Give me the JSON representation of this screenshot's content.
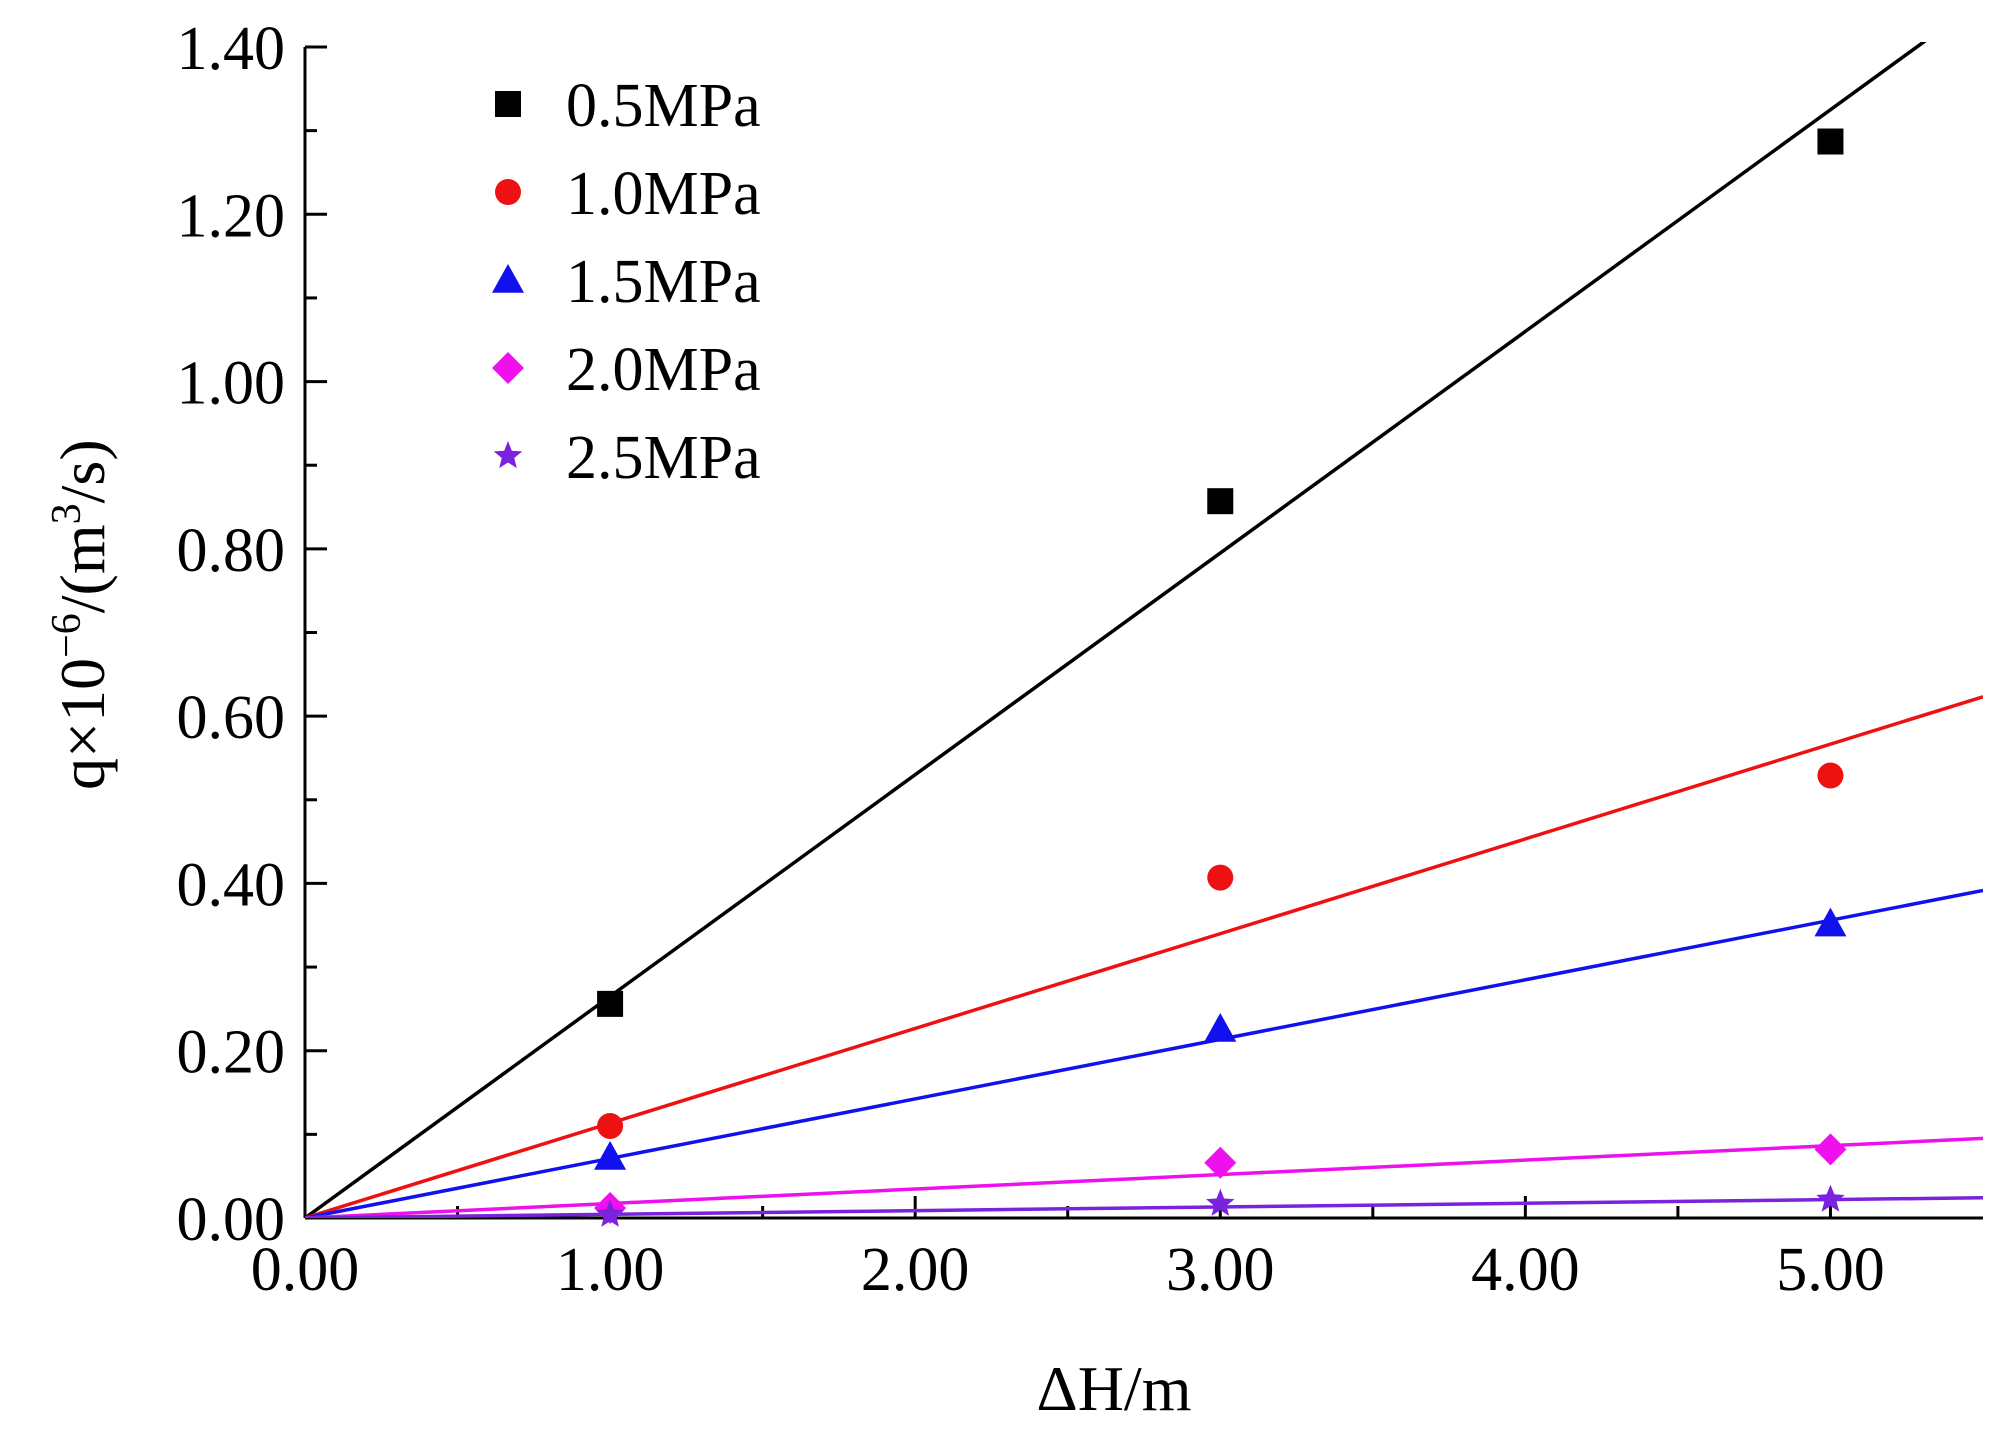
{
  "chart_data": {
    "type": "scatter",
    "title": "",
    "xlabel": "ΔH/m",
    "ylabel": {
      "base": "q×10",
      "exp": "−6",
      "mid": "/(m",
      "unit_exp": "3",
      "tail": "/s)"
    },
    "xlim": [
      0,
      5.5
    ],
    "ylim": [
      0,
      1.4
    ],
    "x_ticks": [
      0,
      1,
      2,
      3,
      4,
      5
    ],
    "x_tick_labels": [
      "0.00",
      "1.00",
      "2.00",
      "3.00",
      "4.00",
      "5.00"
    ],
    "y_ticks": [
      0,
      0.2,
      0.4,
      0.6,
      0.8,
      1.0,
      1.2,
      1.4
    ],
    "y_tick_labels": [
      "0.00",
      "0.20",
      "0.40",
      "0.60",
      "0.80",
      "1.00",
      "1.20",
      "1.40"
    ],
    "grid": false,
    "legend_position": "top-left",
    "series": [
      {
        "name": "0.5MPa",
        "color": "#000000",
        "marker": "square",
        "x": [
          1,
          3,
          5
        ],
        "y": [
          0.256,
          0.857,
          1.287
        ],
        "fit_slope": 0.265
      },
      {
        "name": "1.0MPa",
        "color": "#ee1111",
        "marker": "circle",
        "x": [
          1,
          3,
          5
        ],
        "y": [
          0.11,
          0.407,
          0.529
        ],
        "fit_slope": 0.1133
      },
      {
        "name": "1.5MPa",
        "color": "#1111ee",
        "marker": "triangle",
        "x": [
          1,
          3,
          5
        ],
        "y": [
          0.073,
          0.226,
          0.352
        ],
        "fit_slope": 0.0712
      },
      {
        "name": "2.0MPa",
        "color": "#ee11ee",
        "marker": "diamond",
        "x": [
          1,
          3,
          5
        ],
        "y": [
          0.012,
          0.066,
          0.082
        ],
        "fit_slope": 0.0173
      },
      {
        "name": "2.5MPa",
        "color": "#7a22dd",
        "marker": "star",
        "x": [
          1,
          3,
          5
        ],
        "y": [
          0.004,
          0.017,
          0.022
        ],
        "fit_slope": 0.0044
      }
    ]
  }
}
